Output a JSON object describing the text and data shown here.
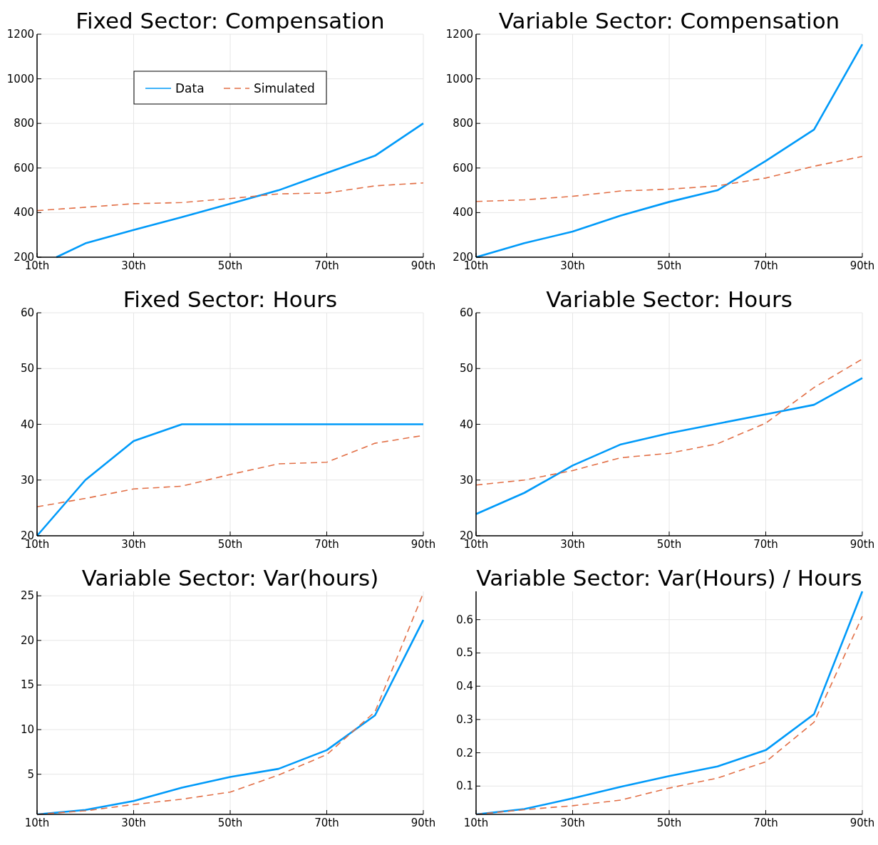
{
  "chart_data": [
    {
      "type": "line",
      "title": "Fixed Sector: Compensation",
      "x": [
        10,
        20,
        30,
        40,
        50,
        60,
        70,
        80,
        90
      ],
      "xlim": [
        10,
        90
      ],
      "xticks": [
        {
          "value": 10,
          "label": "10th"
        },
        {
          "value": 30,
          "label": "30th"
        },
        {
          "value": 50,
          "label": "50th"
        },
        {
          "value": 70,
          "label": "70th"
        },
        {
          "value": 90,
          "label": "90th"
        }
      ],
      "ylim": [
        200,
        1200
      ],
      "yticks": [
        200,
        400,
        600,
        800,
        1000,
        1200
      ],
      "grid": true,
      "legend": "top",
      "series": [
        {
          "name": "Data",
          "color": "#009af9",
          "x": [
            14,
            20,
            30,
            40,
            50,
            60,
            70,
            80,
            90
          ],
          "values": [
            200,
            262,
            322,
            380,
            440,
            500,
            578,
            655,
            800
          ]
        },
        {
          "name": "Simulated",
          "color": "#e26f46",
          "line_style": "dashed",
          "values": [
            409,
            424,
            440,
            445,
            463,
            484,
            488,
            520,
            533
          ]
        }
      ]
    },
    {
      "type": "line",
      "title": "Variable Sector: Compensation",
      "x": [
        10,
        20,
        30,
        40,
        50,
        60,
        70,
        80,
        90
      ],
      "xlim": [
        10,
        90
      ],
      "xticks": [
        {
          "value": 10,
          "label": "10th"
        },
        {
          "value": 30,
          "label": "30th"
        },
        {
          "value": 50,
          "label": "50th"
        },
        {
          "value": 70,
          "label": "70th"
        },
        {
          "value": 90,
          "label": "90th"
        }
      ],
      "ylim": [
        200,
        1200
      ],
      "yticks": [
        200,
        400,
        600,
        800,
        1000,
        1200
      ],
      "grid": true,
      "legend": false,
      "series": [
        {
          "color": "#009af9",
          "values": [
            200,
            263,
            315,
            387,
            448,
            500,
            632,
            772,
            1155
          ]
        },
        {
          "color": "#e26f46",
          "line_style": "dashed",
          "values": [
            450,
            457,
            473,
            497,
            505,
            520,
            555,
            608,
            652
          ]
        }
      ]
    },
    {
      "type": "line",
      "title": "Fixed Sector: Hours",
      "x": [
        10,
        20,
        30,
        40,
        50,
        60,
        70,
        80,
        90
      ],
      "xlim": [
        10,
        90
      ],
      "xticks": [
        {
          "value": 10,
          "label": "10th"
        },
        {
          "value": 30,
          "label": "30th"
        },
        {
          "value": 50,
          "label": "50th"
        },
        {
          "value": 70,
          "label": "70th"
        },
        {
          "value": 90,
          "label": "90th"
        }
      ],
      "ylim": [
        20,
        60
      ],
      "yticks": [
        20,
        30,
        40,
        50,
        60
      ],
      "grid": true,
      "legend": false,
      "series": [
        {
          "color": "#009af9",
          "values": [
            20,
            30,
            37,
            40,
            40,
            40,
            40,
            40,
            40
          ]
        },
        {
          "color": "#e26f46",
          "line_style": "dashed",
          "values": [
            25.2,
            26.7,
            28.4,
            28.9,
            31,
            32.9,
            33.2,
            36.6,
            38
          ]
        }
      ]
    },
    {
      "type": "line",
      "title": "Variable Sector: Hours",
      "x": [
        10,
        20,
        30,
        40,
        50,
        60,
        70,
        80,
        90
      ],
      "xlim": [
        10,
        90
      ],
      "xticks": [
        {
          "value": 10,
          "label": "10th"
        },
        {
          "value": 30,
          "label": "30th"
        },
        {
          "value": 50,
          "label": "50th"
        },
        {
          "value": 70,
          "label": "70th"
        },
        {
          "value": 90,
          "label": "90th"
        }
      ],
      "ylim": [
        20,
        60
      ],
      "yticks": [
        20,
        30,
        40,
        50,
        60
      ],
      "grid": true,
      "legend": false,
      "series": [
        {
          "color": "#009af9",
          "values": [
            23.9,
            27.7,
            32.6,
            36.4,
            38.4,
            40.1,
            41.8,
            43.5,
            48.3
          ]
        },
        {
          "color": "#e26f46",
          "line_style": "dashed",
          "values": [
            29.1,
            30,
            31.7,
            34,
            34.8,
            36.5,
            40.2,
            46.6,
            51.7
          ]
        }
      ]
    },
    {
      "type": "line",
      "title": "Variable Sector: Var(hours)",
      "x": [
        10,
        20,
        30,
        40,
        50,
        60,
        70,
        80,
        90
      ],
      "xlim": [
        10,
        90
      ],
      "xticks": [
        {
          "value": 10,
          "label": "10th"
        },
        {
          "value": 30,
          "label": "30th"
        },
        {
          "value": 50,
          "label": "50th"
        },
        {
          "value": 70,
          "label": "70th"
        },
        {
          "value": 90,
          "label": "90th"
        }
      ],
      "ylim": [
        0.5,
        25.5
      ],
      "yticks": [
        5,
        10,
        15,
        20,
        25
      ],
      "grid": true,
      "legend": false,
      "series": [
        {
          "color": "#009af9",
          "values": [
            0.5,
            1.0,
            2.0,
            3.5,
            4.7,
            5.6,
            7.7,
            11.6,
            22.3
          ]
        },
        {
          "color": "#e26f46",
          "line_style": "dashed",
          "values": [
            0.5,
            0.9,
            1.6,
            2.2,
            3.0,
            4.9,
            7.2,
            12.0,
            25.3
          ]
        }
      ]
    },
    {
      "type": "line",
      "title": "Variable Sector: Var(Hours) / Hours",
      "x": [
        10,
        20,
        30,
        40,
        50,
        60,
        70,
        80,
        90
      ],
      "xlim": [
        10,
        90
      ],
      "xticks": [
        {
          "value": 10,
          "label": "10th"
        },
        {
          "value": 30,
          "label": "30th"
        },
        {
          "value": 50,
          "label": "50th"
        },
        {
          "value": 70,
          "label": "70th"
        },
        {
          "value": 90,
          "label": "90th"
        }
      ],
      "ylim": [
        0.015,
        0.685
      ],
      "yticks": [
        0.1,
        0.2,
        0.3,
        0.4,
        0.5,
        0.6
      ],
      "grid": true,
      "legend": false,
      "series": [
        {
          "color": "#009af9",
          "values": [
            0.015,
            0.031,
            0.063,
            0.098,
            0.13,
            0.159,
            0.208,
            0.316,
            0.685
          ]
        },
        {
          "color": "#e26f46",
          "line_style": "dashed",
          "values": [
            0.015,
            0.029,
            0.041,
            0.058,
            0.094,
            0.124,
            0.173,
            0.292,
            0.61
          ]
        }
      ]
    }
  ]
}
